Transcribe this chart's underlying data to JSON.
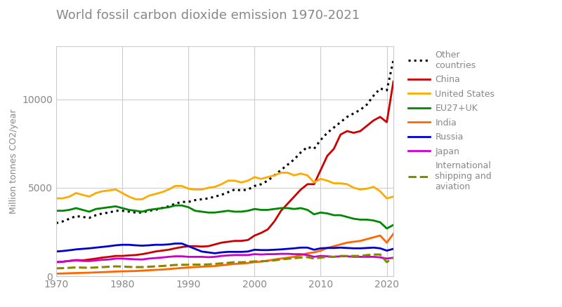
{
  "title": "World fossil carbon dioxide emission 1970-2021",
  "ylabel": "Million tonnes CO2/year",
  "xlim": [
    1970,
    2021
  ],
  "ylim": [
    0,
    13000
  ],
  "yticks": [
    0,
    5000,
    10000
  ],
  "xticks": [
    1970,
    1980,
    1990,
    2000,
    2010,
    2020
  ],
  "bg_color": "#ffffff",
  "grid_color": "#cccccc",
  "title_color": "#888888",
  "label_color": "#888888",
  "years": [
    1970,
    1971,
    1972,
    1973,
    1974,
    1975,
    1976,
    1977,
    1978,
    1979,
    1980,
    1981,
    1982,
    1983,
    1984,
    1985,
    1986,
    1987,
    1988,
    1989,
    1990,
    1991,
    1992,
    1993,
    1994,
    1995,
    1996,
    1997,
    1998,
    1999,
    2000,
    2001,
    2002,
    2003,
    2004,
    2005,
    2006,
    2007,
    2008,
    2009,
    2010,
    2011,
    2012,
    2013,
    2014,
    2015,
    2016,
    2017,
    2018,
    2019,
    2020,
    2021
  ],
  "series": {
    "Other countries": {
      "color": "#000000",
      "linestyle": "dotted",
      "linewidth": 2.2,
      "data": [
        3000,
        3100,
        3250,
        3400,
        3350,
        3300,
        3450,
        3550,
        3600,
        3700,
        3700,
        3650,
        3600,
        3600,
        3700,
        3750,
        3850,
        3950,
        4100,
        4200,
        4200,
        4300,
        4350,
        4400,
        4500,
        4600,
        4750,
        4900,
        4850,
        4900,
        5100,
        5200,
        5400,
        5700,
        6000,
        6300,
        6600,
        7000,
        7300,
        7200,
        7700,
        8100,
        8400,
        8700,
        9000,
        9200,
        9400,
        9700,
        10200,
        10600,
        10500,
        12200
      ]
    },
    "China": {
      "color": "#cc0000",
      "linestyle": "solid",
      "linewidth": 2.0,
      "data": [
        800,
        820,
        870,
        920,
        900,
        950,
        1000,
        1060,
        1100,
        1150,
        1150,
        1180,
        1200,
        1250,
        1320,
        1400,
        1450,
        1500,
        1580,
        1650,
        1700,
        1700,
        1680,
        1700,
        1800,
        1900,
        1950,
        2000,
        2000,
        2050,
        2300,
        2450,
        2650,
        3100,
        3700,
        4100,
        4500,
        4900,
        5200,
        5200,
        6000,
        6800,
        7200,
        8000,
        8200,
        8100,
        8200,
        8500,
        8800,
        9000,
        8700,
        11000
      ]
    },
    "United States": {
      "color": "#ffaa00",
      "linestyle": "solid",
      "linewidth": 2.0,
      "data": [
        4400,
        4400,
        4500,
        4700,
        4600,
        4500,
        4700,
        4800,
        4850,
        4900,
        4700,
        4500,
        4350,
        4350,
        4550,
        4650,
        4750,
        4900,
        5100,
        5100,
        4950,
        4900,
        4900,
        5000,
        5050,
        5200,
        5400,
        5400,
        5300,
        5400,
        5600,
        5500,
        5600,
        5700,
        5850,
        5850,
        5700,
        5800,
        5700,
        5300,
        5500,
        5400,
        5250,
        5250,
        5200,
        5000,
        4900,
        4950,
        5050,
        4800,
        4400,
        4500
      ]
    },
    "EU27+UK": {
      "color": "#008800",
      "linestyle": "solid",
      "linewidth": 2.0,
      "data": [
        3700,
        3700,
        3750,
        3850,
        3750,
        3650,
        3800,
        3850,
        3900,
        3950,
        3850,
        3750,
        3700,
        3650,
        3750,
        3800,
        3850,
        3900,
        4000,
        4000,
        3900,
        3700,
        3650,
        3600,
        3600,
        3650,
        3700,
        3650,
        3650,
        3700,
        3800,
        3750,
        3750,
        3800,
        3850,
        3850,
        3800,
        3850,
        3750,
        3500,
        3600,
        3550,
        3450,
        3450,
        3350,
        3250,
        3200,
        3200,
        3150,
        3050,
        2700,
        2900
      ]
    },
    "India": {
      "color": "#ff6600",
      "linestyle": "solid",
      "linewidth": 2.0,
      "data": [
        150,
        160,
        175,
        185,
        195,
        205,
        220,
        235,
        250,
        270,
        280,
        290,
        300,
        320,
        340,
        360,
        380,
        410,
        440,
        470,
        500,
        520,
        540,
        560,
        580,
        620,
        660,
        700,
        720,
        750,
        800,
        830,
        880,
        950,
        1000,
        1050,
        1100,
        1200,
        1300,
        1350,
        1450,
        1600,
        1700,
        1800,
        1900,
        1950,
        2000,
        2100,
        2200,
        2300,
        1900,
        2400
      ]
    },
    "Russia": {
      "color": "#0000cc",
      "linestyle": "solid",
      "linewidth": 2.0,
      "data": [
        1400,
        1430,
        1470,
        1520,
        1550,
        1580,
        1620,
        1660,
        1700,
        1750,
        1780,
        1780,
        1750,
        1730,
        1750,
        1780,
        1780,
        1800,
        1850,
        1850,
        1700,
        1550,
        1400,
        1350,
        1300,
        1350,
        1380,
        1380,
        1380,
        1400,
        1500,
        1480,
        1480,
        1500,
        1520,
        1550,
        1580,
        1620,
        1620,
        1500,
        1580,
        1600,
        1600,
        1620,
        1600,
        1580,
        1580,
        1600,
        1620,
        1580,
        1450,
        1550
      ]
    },
    "Japan": {
      "color": "#cc00cc",
      "linestyle": "solid",
      "linewidth": 2.0,
      "data": [
        800,
        830,
        870,
        900,
        870,
        860,
        900,
        930,
        950,
        1000,
        1000,
        980,
        960,
        950,
        1000,
        1030,
        1060,
        1100,
        1130,
        1130,
        1100,
        1100,
        1100,
        1080,
        1100,
        1150,
        1180,
        1200,
        1200,
        1200,
        1250,
        1230,
        1250,
        1250,
        1270,
        1270,
        1250,
        1250,
        1200,
        1100,
        1150,
        1130,
        1100,
        1130,
        1130,
        1100,
        1100,
        1100,
        1100,
        1070,
        1000,
        1050
      ]
    },
    "International shipping and aviation": {
      "color": "#888800",
      "linestyle": "dashed",
      "linewidth": 2.2,
      "data": [
        450,
        460,
        480,
        500,
        490,
        480,
        500,
        520,
        540,
        560,
        550,
        530,
        520,
        520,
        540,
        560,
        580,
        610,
        640,
        650,
        650,
        660,
        660,
        670,
        700,
        730,
        760,
        800,
        790,
        810,
        840,
        850,
        870,
        900,
        950,
        990,
        1020,
        1060,
        1080,
        1000,
        1050,
        1100,
        1100,
        1150,
        1150,
        1150,
        1150,
        1200,
        1230,
        1230,
        800,
        1050
      ]
    }
  },
  "legend_labels": [
    "Other\ncountries",
    "China",
    "United States",
    "EU27+UK",
    "India",
    "Russia",
    "Japan",
    "International\nshipping and\naviation"
  ],
  "series_order": [
    "Other countries",
    "China",
    "United States",
    "EU27+UK",
    "India",
    "Russia",
    "Japan",
    "International shipping and aviation"
  ]
}
